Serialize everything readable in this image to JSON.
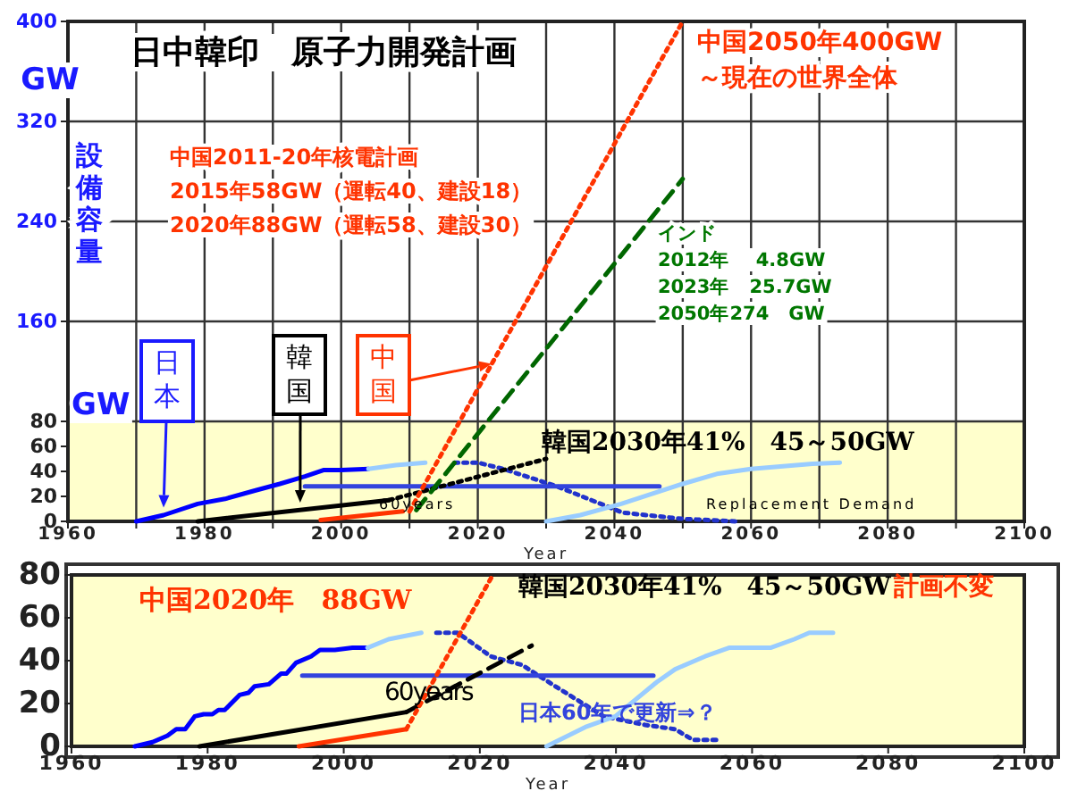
{
  "chart_data": [
    {
      "type": "line",
      "title": "日中韓印　原子力開発計画",
      "xlabel": "Year",
      "ylabel": "設備容量",
      "xlim": [
        1960,
        2100
      ],
      "ylim": [
        0,
        400
      ],
      "xticks": [
        1960,
        {
          "value": 1970,
          "label": null
        },
        1980,
        {
          "value": 1990,
          "label": null
        },
        2000,
        {
          "value": 2010,
          "label": null
        },
        2020,
        {
          "value": 2030,
          "label": null
        },
        2040,
        {
          "value": 2050,
          "label": null
        },
        2060,
        {
          "value": 2070,
          "label": null
        },
        2080,
        {
          "value": 2090,
          "label": null
        },
        2100
      ],
      "yticks": [
        0,
        20,
        40,
        60,
        80,
        160,
        240,
        320,
        400
      ],
      "grid": true,
      "bands": [
        {
          "axis": "y",
          "from": 0,
          "to": 80,
          "color": "#ffffcc"
        }
      ],
      "series": [
        {
          "color": "#0000ff",
          "line_style": "solid",
          "x": [
            1970,
            1974,
            1979,
            1983,
            1987.6,
            1991,
            1994.7,
            1997.4,
            2000,
            2004
          ],
          "values": [
            0,
            5,
            14,
            18,
            25,
            30,
            36,
            41,
            41,
            42
          ]
        },
        {
          "color": "#99ccff",
          "line_style": "solid",
          "x": [
            2004,
            2008,
            2012.3
          ],
          "values": [
            42,
            45,
            47
          ]
        },
        {
          "color": "#2233cc",
          "line_style": "dotted",
          "x": [
            2016.6,
            2020,
            2023.7,
            2031.6,
            2041.2,
            2050,
            2058
          ],
          "values": [
            47,
            47,
            42,
            28,
            7,
            2,
            0
          ]
        },
        {
          "color": "#99ccff",
          "line_style": "solid",
          "x": [
            2030,
            2035,
            2041,
            2050,
            2055,
            2060,
            2069,
            2073
          ],
          "values": [
            0,
            5,
            14,
            30,
            38,
            42,
            46,
            47
          ]
        },
        {
          "color": "#3344dd",
          "line_style": "solid",
          "x": [
            1994.7,
            2046.6
          ],
          "values": [
            28,
            28
          ]
        },
        {
          "color": "#000000",
          "line_style": "solid",
          "x": [
            1979,
            2007
          ],
          "values": [
            0,
            17
          ]
        },
        {
          "color": "#000000",
          "line_style": "dotted",
          "x": [
            2007,
            2030
          ],
          "values": [
            17,
            50
          ]
        },
        {
          "color": "#ff3300",
          "line_style": "solid",
          "x": [
            1997,
            2009
          ],
          "values": [
            1,
            8
          ]
        },
        {
          "color": "#ff3300",
          "line_style": "dotted",
          "x": [
            2010,
            2050
          ],
          "values": [
            8,
            400
          ]
        },
        {
          "color": "#006600",
          "line_style": "dashed",
          "x": [
            2011,
            2050
          ],
          "values": [
            9,
            274
          ]
        }
      ],
      "annotations": [
        "GW",
        "GW",
        "中国2011-20年核電計画\n2015年58GW（運転40、建設18）\n2020年88GW（運転58、建設30）",
        "中国2050年400GW\n～現在の世界全体",
        "インド\n2012年　 4.8GW\n2023年　25.7GW\n2050年274　GW",
        {
          "text": "日本",
          "x": 1974,
          "y": 11
        },
        {
          "text": "韓国",
          "x": 1994,
          "y": 15
        },
        {
          "text": "中国",
          "x": 2022,
          "y": 126
        },
        "韓国2030年41%　45～50GW",
        "60years",
        "Replacement Demand"
      ]
    },
    {
      "type": "line",
      "xlabel": "Year",
      "xlim": [
        1960,
        2100
      ],
      "ylim": [
        0,
        80
      ],
      "xticks": [
        1960,
        1980,
        2000,
        2020,
        2040,
        2060,
        2080,
        2100
      ],
      "yticks": [
        0,
        20,
        40,
        60,
        80
      ],
      "bands": [
        {
          "axis": "y",
          "from": 0,
          "to": 80,
          "color": "#ffffcc"
        }
      ],
      "series": [
        {
          "color": "#0000ff",
          "line_style": "solid",
          "x": [
            1969.3,
            1971.9,
            1974.1,
            1975.4,
            1976.7,
            1978.1,
            1979.4,
            1980.7,
            1981.6,
            1982.5,
            1984.7,
            1986,
            1986.9,
            1989,
            1990.8,
            1991.6,
            1993,
            1995.2,
            1996.5,
            1998.7,
            2001.3,
            2003.5
          ],
          "values": [
            0,
            2,
            5,
            8,
            8,
            14,
            15,
            15,
            17,
            17,
            24,
            25,
            28,
            29,
            34,
            34,
            39,
            42,
            45,
            45,
            46,
            46
          ]
        },
        {
          "color": "#99ccff",
          "line_style": "solid",
          "x": [
            2003.5,
            2006.6,
            2011.4
          ],
          "values": [
            46,
            50,
            53
          ]
        },
        {
          "color": "#2233cc",
          "line_style": "dotted",
          "x": [
            2013.6,
            2016.7,
            2018.1,
            2021.6,
            2026.2,
            2031.1,
            2038.2,
            2044.3,
            2048.7,
            2051.3,
            2055.3
          ],
          "values": [
            53,
            53,
            50,
            42,
            38,
            28,
            14,
            10,
            8,
            3,
            3
          ]
        },
        {
          "color": "#99ccff",
          "line_style": "solid",
          "x": [
            2029.8,
            2035.5,
            2039.9,
            2046,
            2048.7,
            2053.1,
            2056.6,
            2062.7,
            2066.2,
            2068.4,
            2071.9
          ],
          "values": [
            0,
            9,
            14,
            30,
            36,
            42,
            46,
            46,
            50,
            53,
            53
          ]
        },
        {
          "color": "#3344dd",
          "line_style": "solid",
          "x": [
            1993.9,
            2045.5
          ],
          "values": [
            33,
            33
          ]
        },
        {
          "color": "#000000",
          "line_style": "solid",
          "x": [
            1978.8,
            2009.2
          ],
          "values": [
            0,
            16
          ]
        },
        {
          "color": "#000000",
          "line_style": "dashed",
          "x": [
            2009.2,
            2027.6
          ],
          "values": [
            16,
            47
          ]
        },
        {
          "color": "#ff3300",
          "line_style": "solid",
          "x": [
            1993.4,
            2009.2
          ],
          "values": [
            0,
            8
          ]
        },
        {
          "color": "#ff3300",
          "line_style": "dotted",
          "x": [
            2009.2,
            2021.9
          ],
          "values": [
            8,
            80
          ]
        }
      ],
      "annotations": [
        "中国2020年　88GW",
        "韓国2030年41%　45～50GW",
        "計画不変",
        "60years",
        "日本60年で更新⇒？"
      ]
    }
  ]
}
